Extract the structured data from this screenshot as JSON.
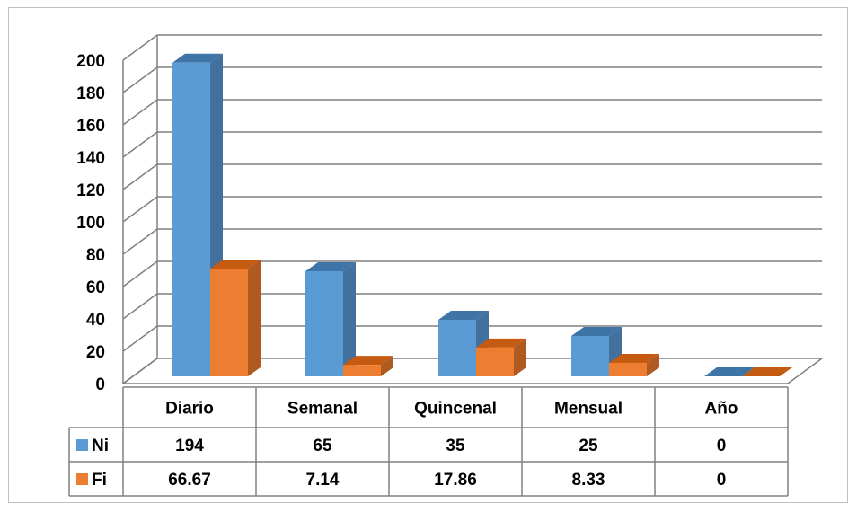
{
  "chart_data": {
    "type": "bar",
    "title": "",
    "xlabel": "",
    "ylabel": "",
    "categories": [
      "Diario",
      "Semanal",
      "Quincenal",
      "Mensual",
      "Año"
    ],
    "series": [
      {
        "name": "Ni",
        "values": [
          194,
          65,
          35,
          25,
          0
        ],
        "value_labels": [
          "194",
          "65",
          "35",
          "25",
          "0"
        ]
      },
      {
        "name": "Fi",
        "values": [
          66.67,
          7.14,
          17.86,
          8.33,
          0
        ],
        "value_labels": [
          "66.67",
          "7.14",
          "17.86",
          "8.33",
          "0"
        ]
      }
    ],
    "ylim": [
      0,
      200
    ],
    "yticks": [
      "0",
      "20",
      "40",
      "60",
      "80",
      "100",
      "120",
      "140",
      "160",
      "180",
      "200"
    ],
    "grid": true,
    "style": "3d-clustered-column",
    "legend": "data-table-left",
    "colors": {
      "Ni": {
        "front": "#5b9bd5",
        "side": "#41719c",
        "top": "#3f74a6"
      },
      "Fi": {
        "front": "#ed7d31",
        "side": "#ae5a21",
        "top": "#c55a11"
      },
      "grid": "#808080",
      "table_border": "#808080"
    }
  }
}
